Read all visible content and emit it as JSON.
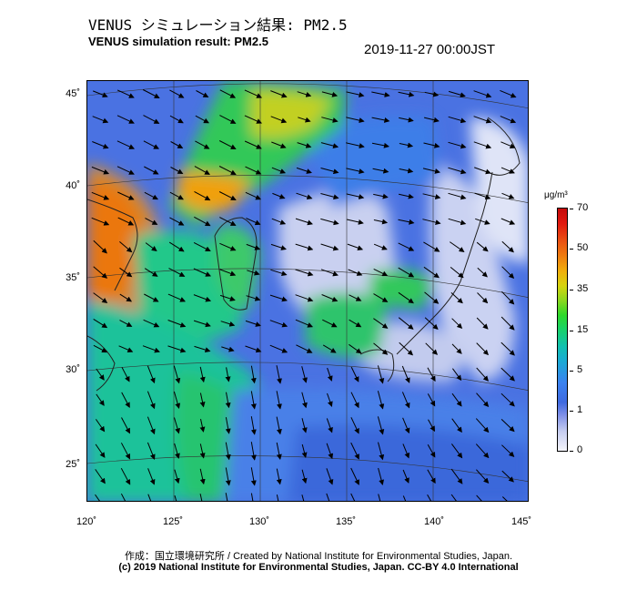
{
  "header": {
    "title_jp": "VENUS シミュレーション結果: PM2.5",
    "title_en": "VENUS simulation result: PM2.5",
    "timestamp": "2019-11-27 00:00JST"
  },
  "map": {
    "latitude_labels": [
      "45˚",
      "40˚",
      "35˚",
      "30˚",
      "25˚"
    ],
    "longitude_labels": [
      "120˚",
      "125˚",
      "130˚",
      "135˚",
      "140˚",
      "145˚"
    ],
    "field": "PM2.5 concentration with wind vectors",
    "colors": {
      "ocean_low": "#3b6ee0",
      "land_clean": "#d6dcf2",
      "high": "#e0180f"
    }
  },
  "colorbar": {
    "unit": "μg/m³",
    "ticks": [
      "70",
      "50",
      "35",
      "15",
      "5",
      "1",
      "0"
    ]
  },
  "footer": {
    "credit": "作成：国立環境研究所 / Created by National Institute for Environmental Studies, Japan.",
    "copyright": "(c) 2019 National Institute for Environmental Studies, Japan. CC-BY 4.0 International"
  }
}
